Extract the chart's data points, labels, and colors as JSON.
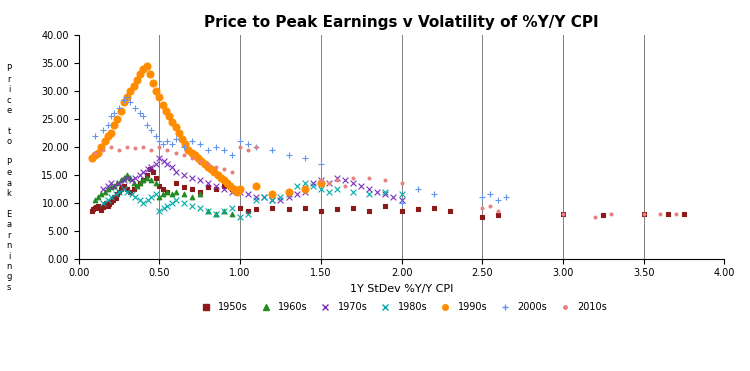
{
  "title": "Price to Peak Earnings v Volatility of %Y/Y CPI",
  "xlabel": "1Y StDev %Y/Y CPI",
  "ylabel_text": "P\nr\ni\nc\ne\n \nt\no\n \nP\ne\na\nk\n \nE\na\nr\nn\ni\nn\ng\ns",
  "xlim": [
    0.0,
    4.0
  ],
  "ylim": [
    0.0,
    40.0
  ],
  "xticks": [
    0.0,
    0.5,
    1.0,
    1.5,
    2.0,
    2.5,
    3.0,
    3.5,
    4.0
  ],
  "yticks": [
    0.0,
    5.0,
    10.0,
    15.0,
    20.0,
    25.0,
    30.0,
    35.0,
    40.0
  ],
  "vlines": [
    0.5,
    1.0,
    1.5,
    2.0,
    2.5,
    3.0,
    3.5
  ],
  "series": {
    "1950s": {
      "color": "#8B1A1A",
      "marker": "s",
      "markersize": 4,
      "x": [
        0.08,
        0.09,
        0.1,
        0.11,
        0.12,
        0.13,
        0.14,
        0.15,
        0.16,
        0.17,
        0.18,
        0.19,
        0.2,
        0.21,
        0.22,
        0.23,
        0.24,
        0.25,
        0.26,
        0.27,
        0.28,
        0.3,
        0.32,
        0.34,
        0.36,
        0.38,
        0.4,
        0.42,
        0.44,
        0.46,
        0.48,
        0.5,
        0.52,
        0.55,
        0.6,
        0.65,
        0.7,
        0.75,
        0.8,
        0.85,
        0.9,
        0.95,
        1.0,
        1.05,
        1.1,
        1.2,
        1.3,
        1.4,
        1.5,
        1.6,
        1.7,
        1.8,
        1.9,
        2.0,
        2.1,
        2.2,
        2.3,
        2.5,
        2.6,
        3.0,
        3.25,
        3.5,
        3.65,
        3.75
      ],
      "y": [
        8.5,
        8.8,
        9.0,
        9.2,
        9.5,
        9.0,
        8.7,
        9.3,
        9.8,
        10.0,
        9.5,
        9.8,
        10.2,
        10.5,
        11.0,
        10.8,
        11.5,
        12.0,
        12.5,
        12.8,
        13.0,
        12.5,
        12.0,
        12.5,
        13.0,
        13.5,
        14.0,
        15.0,
        16.0,
        15.5,
        14.5,
        13.0,
        12.5,
        12.0,
        13.5,
        12.8,
        12.5,
        12.0,
        12.8,
        12.5,
        13.0,
        12.5,
        9.0,
        8.5,
        8.8,
        9.0,
        8.8,
        9.0,
        8.5,
        8.8,
        9.0,
        8.5,
        9.5,
        8.5,
        8.8,
        9.0,
        8.5,
        7.5,
        7.8,
        8.0,
        7.8,
        8.0,
        8.0,
        8.0
      ]
    },
    "1960s": {
      "color": "#228B22",
      "marker": "^",
      "markersize": 4,
      "x": [
        0.1,
        0.12,
        0.14,
        0.16,
        0.18,
        0.2,
        0.22,
        0.24,
        0.26,
        0.28,
        0.3,
        0.32,
        0.34,
        0.36,
        0.38,
        0.4,
        0.42,
        0.45,
        0.48,
        0.5,
        0.52,
        0.55,
        0.58,
        0.6,
        0.65,
        0.7,
        0.75,
        0.8,
        0.85,
        0.9,
        0.95
      ],
      "y": [
        10.5,
        11.0,
        11.5,
        12.0,
        12.5,
        12.8,
        13.0,
        13.5,
        14.0,
        14.5,
        15.0,
        14.5,
        13.5,
        13.0,
        13.5,
        14.0,
        14.5,
        14.0,
        13.5,
        11.0,
        11.5,
        12.0,
        11.5,
        12.0,
        11.5,
        11.0,
        11.5,
        8.5,
        8.0,
        8.5,
        8.0
      ]
    },
    "1970s": {
      "color": "#7B2FBE",
      "marker": "x",
      "markersize": 5,
      "x": [
        0.15,
        0.18,
        0.2,
        0.22,
        0.25,
        0.28,
        0.3,
        0.33,
        0.35,
        0.38,
        0.4,
        0.43,
        0.45,
        0.48,
        0.5,
        0.53,
        0.55,
        0.58,
        0.6,
        0.65,
        0.7,
        0.75,
        0.8,
        0.85,
        0.9,
        0.95,
        1.0,
        1.05,
        1.1,
        1.15,
        1.2,
        1.25,
        1.3,
        1.35,
        1.4,
        1.45,
        1.5,
        1.55,
        1.6,
        1.65,
        1.7,
        1.75,
        1.8,
        1.85,
        1.9,
        1.95,
        2.0
      ],
      "y": [
        12.5,
        13.0,
        13.5,
        13.0,
        13.5,
        14.0,
        14.5,
        14.0,
        14.5,
        15.0,
        15.5,
        16.0,
        16.5,
        17.0,
        18.0,
        17.5,
        17.0,
        16.5,
        15.5,
        15.0,
        14.5,
        14.0,
        13.5,
        13.0,
        12.5,
        12.0,
        12.0,
        11.5,
        11.0,
        11.0,
        10.5,
        10.5,
        11.0,
        11.5,
        12.0,
        13.5,
        14.0,
        13.5,
        14.5,
        14.0,
        13.5,
        13.0,
        12.5,
        12.0,
        11.5,
        11.0,
        10.5
      ]
    },
    "1980s": {
      "color": "#00AAAA",
      "marker": "x",
      "markersize": 5,
      "x": [
        0.15,
        0.18,
        0.2,
        0.23,
        0.25,
        0.28,
        0.3,
        0.33,
        0.35,
        0.38,
        0.4,
        0.43,
        0.45,
        0.48,
        0.5,
        0.53,
        0.55,
        0.58,
        0.6,
        0.65,
        0.7,
        0.75,
        0.8,
        0.85,
        0.9,
        0.95,
        1.0,
        1.05,
        1.1,
        1.15,
        1.2,
        1.25,
        1.3,
        1.35,
        1.4,
        1.45,
        1.5,
        1.55,
        1.6,
        1.7,
        1.8,
        1.9,
        2.0
      ],
      "y": [
        10.0,
        10.5,
        11.0,
        11.5,
        12.0,
        12.5,
        12.0,
        11.5,
        11.0,
        10.5,
        10.0,
        10.5,
        11.0,
        11.5,
        8.5,
        9.0,
        9.5,
        10.0,
        10.5,
        10.0,
        9.5,
        9.0,
        8.5,
        8.0,
        8.5,
        9.0,
        7.5,
        8.0,
        10.5,
        11.0,
        10.5,
        11.0,
        11.5,
        13.0,
        13.5,
        13.0,
        12.5,
        12.0,
        12.5,
        12.0,
        11.5,
        12.0,
        11.5
      ]
    },
    "1990s": {
      "color": "#FF8C00",
      "marker": "o",
      "markersize": 6,
      "x": [
        0.08,
        0.1,
        0.12,
        0.14,
        0.16,
        0.18,
        0.2,
        0.22,
        0.24,
        0.26,
        0.28,
        0.3,
        0.32,
        0.34,
        0.36,
        0.38,
        0.4,
        0.42,
        0.44,
        0.46,
        0.48,
        0.5,
        0.52,
        0.54,
        0.56,
        0.58,
        0.6,
        0.62,
        0.64,
        0.66,
        0.68,
        0.7,
        0.72,
        0.74,
        0.76,
        0.78,
        0.8,
        0.82,
        0.84,
        0.86,
        0.88,
        0.9,
        0.92,
        0.94,
        0.96,
        0.98,
        1.0,
        1.1,
        1.2,
        1.3,
        1.4,
        1.5
      ],
      "y": [
        18.0,
        18.5,
        19.0,
        20.0,
        21.0,
        22.0,
        22.5,
        24.0,
        25.0,
        26.5,
        28.0,
        29.0,
        30.0,
        31.0,
        32.0,
        33.0,
        34.0,
        34.5,
        33.0,
        31.5,
        30.0,
        29.0,
        27.5,
        26.5,
        25.5,
        24.5,
        23.5,
        22.5,
        21.5,
        20.5,
        19.5,
        19.0,
        18.5,
        18.0,
        17.5,
        17.0,
        16.5,
        16.0,
        15.5,
        15.0,
        14.5,
        14.0,
        13.5,
        13.0,
        12.5,
        12.0,
        12.5,
        13.0,
        11.5,
        12.0,
        12.5,
        13.5
      ]
    },
    "2000s": {
      "color": "#6495ED",
      "marker": "+",
      "markersize": 6,
      "x": [
        0.1,
        0.15,
        0.18,
        0.2,
        0.22,
        0.25,
        0.28,
        0.3,
        0.32,
        0.35,
        0.38,
        0.4,
        0.42,
        0.45,
        0.48,
        0.5,
        0.52,
        0.55,
        0.58,
        0.6,
        0.65,
        0.7,
        0.75,
        0.8,
        0.85,
        0.9,
        0.95,
        1.0,
        1.05,
        1.1,
        1.2,
        1.3,
        1.4,
        1.5,
        2.0,
        2.1,
        2.2,
        2.5,
        2.55,
        2.6,
        2.65
      ],
      "y": [
        22.0,
        23.0,
        24.0,
        25.5,
        26.0,
        27.0,
        28.5,
        29.0,
        28.0,
        27.0,
        26.0,
        25.5,
        24.0,
        23.0,
        22.0,
        21.0,
        20.5,
        21.0,
        20.5,
        21.5,
        20.0,
        21.0,
        20.5,
        19.5,
        20.0,
        19.5,
        18.5,
        21.0,
        20.5,
        20.0,
        19.5,
        18.5,
        18.0,
        17.0,
        10.0,
        12.5,
        11.5,
        11.0,
        11.5,
        10.5,
        11.0
      ]
    },
    "2010s": {
      "color": "#E88080",
      "marker": ".",
      "markersize": 5,
      "x": [
        0.1,
        0.15,
        0.2,
        0.25,
        0.3,
        0.35,
        0.4,
        0.45,
        0.5,
        0.55,
        0.6,
        0.65,
        0.7,
        0.75,
        0.8,
        0.85,
        0.9,
        0.95,
        1.0,
        1.05,
        1.1,
        1.5,
        1.55,
        1.6,
        1.65,
        1.7,
        1.8,
        1.9,
        2.0,
        2.5,
        2.55,
        2.6,
        3.0,
        3.2,
        3.3,
        3.5,
        3.6,
        3.7
      ],
      "y": [
        19.0,
        19.5,
        20.0,
        19.5,
        20.0,
        19.8,
        20.0,
        19.5,
        20.0,
        19.5,
        19.0,
        18.5,
        18.0,
        17.5,
        17.0,
        16.5,
        16.0,
        15.5,
        20.0,
        19.5,
        20.0,
        14.0,
        13.5,
        14.0,
        13.0,
        14.5,
        14.5,
        14.0,
        13.5,
        9.0,
        9.5,
        8.5,
        8.0,
        7.5,
        8.0,
        8.0,
        8.0,
        8.0
      ]
    }
  },
  "legend": {
    "entries": [
      "1950s",
      "1960s",
      "1970s",
      "1980s",
      "1990s",
      "2000s",
      "2010s"
    ],
    "colors": [
      "#8B1A1A",
      "#228B22",
      "#7B2FBE",
      "#00AAAA",
      "#FF8C00",
      "#6495ED",
      "#E88080"
    ],
    "markers": [
      "s",
      "^",
      "x",
      "x",
      "o",
      "+",
      "."
    ]
  },
  "background_color": "#FFFFFF",
  "title_fontsize": 11,
  "xlabel_fontsize": 8,
  "tick_fontsize": 7
}
